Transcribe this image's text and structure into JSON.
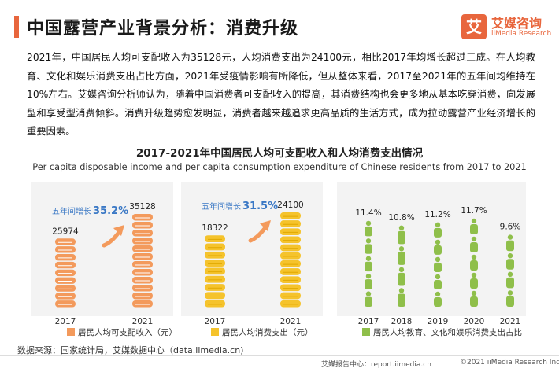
{
  "header": {
    "title": "中国露营产业背景分析：消费升级",
    "brand_logo": "艾",
    "brand_cn": "艾媒咨询",
    "brand_en": "iiMedia Research"
  },
  "paragraph": "2021年，中国居民人均可支配收入为35128元，人均消费支出为24100元，相比2017年均增长超过三成。在人均教育、文化和娱乐消费支出占比方面，2021年受疫情影响有所降低，但从整体来看，2017至2021年的五年间均维持在10%左右。艾媒咨询分析师认为，随着中国消费者可支配收入的提高，其消费结构也会更多地从基本吃穿消费，向发展型和享受型消费倾斜。消费升级趋势愈发明显，消费者越来越追求更高品质的生活方式，成为拉动露营产业经济增长的重要因素。",
  "chart_title": "2017-2021年中国居民人均可支配收入和人均消费支出情况",
  "chart_subtitle": "Per capita disposable income and per capita consumption expenditure of Chinese residents from 2017 to 2021",
  "colors": {
    "accent": "#e8663d",
    "income": "#f39a5c",
    "consumption": "#f5c32c",
    "edu": "#8fbf4a"
  },
  "chart_data": [
    {
      "type": "bar",
      "categories": [
        "2017",
        "2021"
      ],
      "values": [
        25974,
        35128
      ],
      "data_labels": [
        "25974",
        "35128"
      ],
      "growth_label": "五年间增长",
      "growth_value": "35.2%",
      "legend": "居民人均可支配收入（元）"
    },
    {
      "type": "bar",
      "categories": [
        "2017",
        "2021"
      ],
      "values": [
        18322,
        24100
      ],
      "data_labels": [
        "18322",
        "24100"
      ],
      "growth_label": "五年间增长",
      "growth_value": "31.5%",
      "legend": "居民人均消费支出（元）"
    },
    {
      "type": "bar",
      "categories": [
        "2017",
        "2018",
        "2019",
        "2020",
        "2021"
      ],
      "values": [
        11.4,
        10.8,
        11.2,
        11.7,
        9.6
      ],
      "data_labels": [
        "11.4%",
        "10.8%",
        "11.2%",
        "11.7%",
        "9.6%"
      ],
      "legend": "居民人均教育、文化和娱乐消费支出占比"
    }
  ],
  "footer": {
    "source": "数据来源：国家统计局，艾媒数据中心（data.iimedia.cn)",
    "report_center": "艾媒报告中心：report.iimedia.cn",
    "copyright": "©2021  iiMedia Research  Inc"
  }
}
